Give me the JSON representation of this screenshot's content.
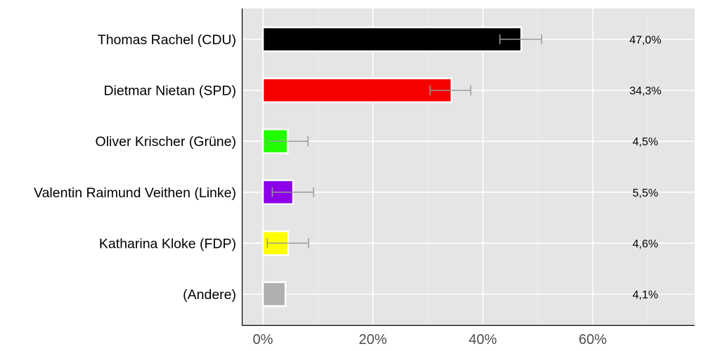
{
  "chart_data": {
    "type": "bar",
    "orientation": "horizontal",
    "title": "",
    "xlabel": "",
    "ylabel": "",
    "xlim": [
      -4,
      78
    ],
    "x_ticks": [
      0,
      20,
      40,
      60
    ],
    "x_tick_labels": [
      "0%",
      "20%",
      "40%",
      "60%"
    ],
    "minor_gridlines": [
      10,
      30,
      50,
      70
    ],
    "grid": true,
    "legend": null,
    "categories": [
      "Thomas Rachel (CDU)",
      "Dietmar Nietan (SPD)",
      "Oliver Krischer (Grüne)",
      "Valentin Raimund Veithen (Linke)",
      "Katharina Kloke (FDP)",
      "(Andere)"
    ],
    "values": [
      47.0,
      34.3,
      4.5,
      5.5,
      4.6,
      4.1
    ],
    "value_labels": [
      "47,0%",
      "34,3%",
      "4,5%",
      "5,5%",
      "4,6%",
      "4,1%"
    ],
    "colors": [
      "#000000",
      "#f70000",
      "#22ff00",
      "#8b00e8",
      "#ffff00",
      "#b0b0b0"
    ],
    "error_bars": [
      [
        43.1,
        50.7
      ],
      [
        30.4,
        37.8
      ],
      [
        0.8,
        8.2
      ],
      [
        1.7,
        9.2
      ],
      [
        0.8,
        8.3
      ],
      null
    ]
  },
  "style": {
    "panel_bg": "#e5e5e5",
    "grid_color": "#ffffff",
    "errorbar_color": "#999999",
    "axis_color": "#000000",
    "tick_label_color": "#4d4d4d"
  }
}
